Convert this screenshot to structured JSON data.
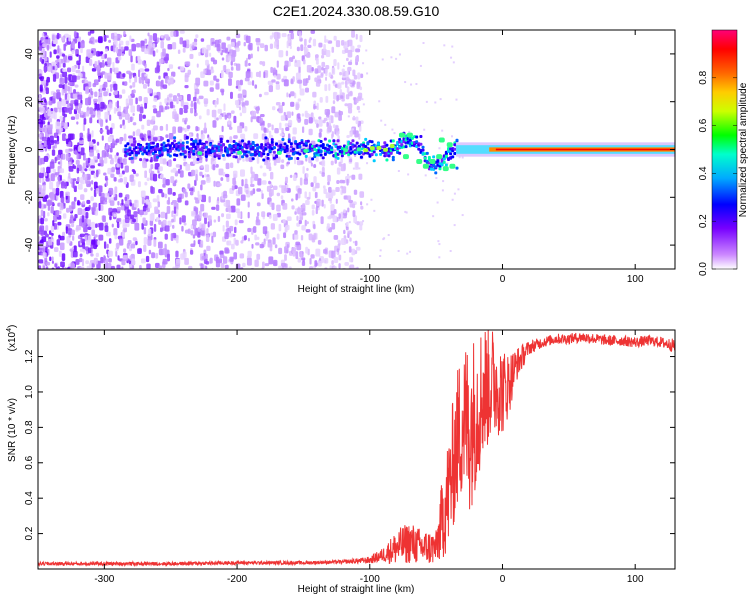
{
  "figure": {
    "title": "C2E1.2024.330.08.59.G10"
  },
  "chart_data": [
    {
      "type": "heatmap",
      "xlabel": "Height of straight line (km)",
      "ylabel": "Frequency (Hz)",
      "xlim": [
        -350,
        130
      ],
      "ylim": [
        -50,
        50
      ],
      "xticks": [
        -300,
        -200,
        -100,
        0,
        100
      ],
      "yticks": [
        -40,
        -20,
        0,
        20,
        40
      ],
      "grid": false,
      "colorbar": {
        "label": "Normalized spectral amplitude",
        "range": [
          0.0,
          1.0
        ],
        "ticks": [
          "0.0",
          "0.2",
          "0.4",
          "0.6",
          "0.8"
        ],
        "colors": [
          "#ffffff",
          "#9900ff",
          "#0000ff",
          "#00ffff",
          "#00ff00",
          "#ffff00",
          "#ff8800",
          "#ff0000",
          "#ff00aa"
        ]
      },
      "features": {
        "broadband_noise_x_range": [
          -350,
          -115
        ],
        "carrier_line_frequency": 0,
        "carrier_wobble_x_range": [
          -80,
          -35
        ],
        "carrier_wobble_frequency_range": [
          -10,
          8
        ]
      }
    },
    {
      "type": "line",
      "xlabel": "Height of straight line (km)",
      "ylabel": "SNR (10 * v/v)",
      "y_multiplier_label": "(x10",
      "y_multiplier_exponent": "4",
      "y_multiplier_suffix": ")",
      "xlim": [
        -350,
        130
      ],
      "ylim": [
        0,
        1.35
      ],
      "xticks": [
        -300,
        -200,
        -100,
        0,
        100
      ],
      "yticks": [
        "0.2",
        "0.4",
        "0.6",
        "0.8",
        "1.0",
        "1.2"
      ],
      "line_color": "#ee3333",
      "series": [
        {
          "x": [
            -350,
            -300,
            -250,
            -200,
            -150,
            -120,
            -100,
            -90,
            -80,
            -70,
            -60,
            -50,
            -45,
            -40,
            -35,
            -30,
            -25,
            -20,
            -15,
            -10,
            -5,
            0,
            5,
            10,
            20,
            30,
            40,
            50,
            60,
            70,
            80,
            90,
            100,
            110,
            120,
            130
          ],
          "values": [
            0.03,
            0.03,
            0.03,
            0.035,
            0.035,
            0.04,
            0.05,
            0.08,
            0.12,
            0.15,
            0.12,
            0.12,
            0.3,
            0.45,
            0.7,
            0.85,
            0.8,
            0.9,
            1.0,
            1.05,
            1.05,
            1.0,
            1.05,
            1.15,
            1.25,
            1.28,
            1.3,
            1.3,
            1.31,
            1.3,
            1.29,
            1.29,
            1.28,
            1.29,
            1.28,
            1.26
          ],
          "spread": [
            0.01,
            0.01,
            0.01,
            0.01,
            0.01,
            0.01,
            0.02,
            0.04,
            0.1,
            0.12,
            0.1,
            0.1,
            0.25,
            0.35,
            0.4,
            0.45,
            0.5,
            0.45,
            0.4,
            0.35,
            0.3,
            0.25,
            0.18,
            0.1,
            0.04,
            0.03,
            0.03,
            0.03,
            0.03,
            0.03,
            0.03,
            0.03,
            0.03,
            0.03,
            0.03,
            0.04
          ]
        }
      ]
    }
  ]
}
